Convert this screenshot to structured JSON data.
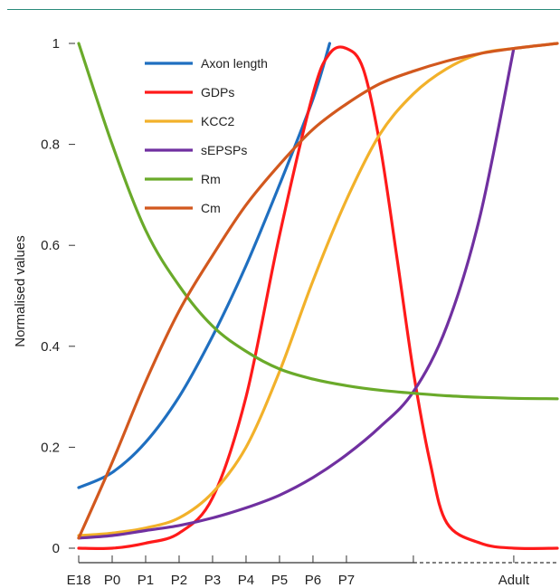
{
  "chart_data": {
    "type": "line",
    "title": "",
    "ylabel": "Normalised values",
    "xlabel": "",
    "ylim": [
      0,
      1
    ],
    "yticks": [
      0,
      0.2,
      0.4,
      0.6,
      0.8,
      1
    ],
    "ytick_labels": [
      "0",
      "0.2",
      "0.4",
      "0.6",
      "0.8",
      "1"
    ],
    "categories": [
      "E18",
      "P0",
      "P1",
      "P2",
      "P3",
      "P4",
      "P5",
      "P6",
      "P7",
      "Adult"
    ],
    "category_positions": [
      0,
      1,
      2,
      3,
      4,
      5,
      6,
      7,
      8,
      13
    ],
    "xlim": [
      0,
      14.3
    ],
    "axis_break_after": 10,
    "grid": false,
    "legend_position": "top-left",
    "series": [
      {
        "name": "Axon length",
        "color": "#1f6fc0",
        "x": [
          0,
          1,
          2,
          3,
          4,
          5,
          6,
          7,
          7.5
        ],
        "y": [
          0.12,
          0.15,
          0.21,
          0.3,
          0.42,
          0.56,
          0.72,
          0.89,
          1.0
        ]
      },
      {
        "name": "GDPs",
        "color": "#ff1a1a",
        "x": [
          0,
          1,
          2,
          3,
          4,
          5,
          6,
          7,
          7.5,
          8,
          8.5,
          9,
          9.5,
          10,
          10.5,
          11,
          12,
          13,
          14.3
        ],
        "y": [
          0.0,
          0.0,
          0.01,
          0.03,
          0.1,
          0.3,
          0.62,
          0.9,
          0.98,
          0.99,
          0.95,
          0.8,
          0.58,
          0.35,
          0.17,
          0.05,
          0.01,
          0.0,
          0.0
        ]
      },
      {
        "name": "KCC2",
        "color": "#f2b12a",
        "x": [
          0,
          1,
          2,
          3,
          4,
          5,
          6,
          7,
          8,
          9,
          10,
          11,
          12,
          13,
          14.3
        ],
        "y": [
          0.025,
          0.03,
          0.04,
          0.06,
          0.11,
          0.2,
          0.35,
          0.53,
          0.69,
          0.82,
          0.9,
          0.95,
          0.98,
          0.99,
          1.0
        ]
      },
      {
        "name": "sEPSPs",
        "color": "#7030a0",
        "x": [
          0,
          1,
          2,
          3,
          4,
          5,
          6,
          7,
          8,
          9,
          10,
          11,
          12,
          13
        ],
        "y": [
          0.02,
          0.025,
          0.035,
          0.045,
          0.06,
          0.08,
          0.105,
          0.14,
          0.185,
          0.24,
          0.31,
          0.44,
          0.66,
          0.99
        ]
      },
      {
        "name": "Rm",
        "color": "#6aaa2a",
        "x": [
          0,
          1,
          2,
          3,
          4,
          5,
          6,
          7,
          8,
          9,
          10,
          11,
          12,
          13,
          14.3
        ],
        "y": [
          1.0,
          0.8,
          0.63,
          0.52,
          0.44,
          0.39,
          0.355,
          0.335,
          0.322,
          0.313,
          0.307,
          0.302,
          0.299,
          0.297,
          0.296
        ]
      },
      {
        "name": "Cm",
        "color": "#d2581e",
        "x": [
          0,
          1,
          2,
          3,
          4,
          5,
          6,
          7,
          8,
          9,
          10,
          11,
          12,
          13,
          14.3
        ],
        "y": [
          0.02,
          0.17,
          0.33,
          0.47,
          0.58,
          0.68,
          0.76,
          0.83,
          0.88,
          0.92,
          0.945,
          0.965,
          0.98,
          0.99,
          1.0
        ]
      }
    ]
  }
}
